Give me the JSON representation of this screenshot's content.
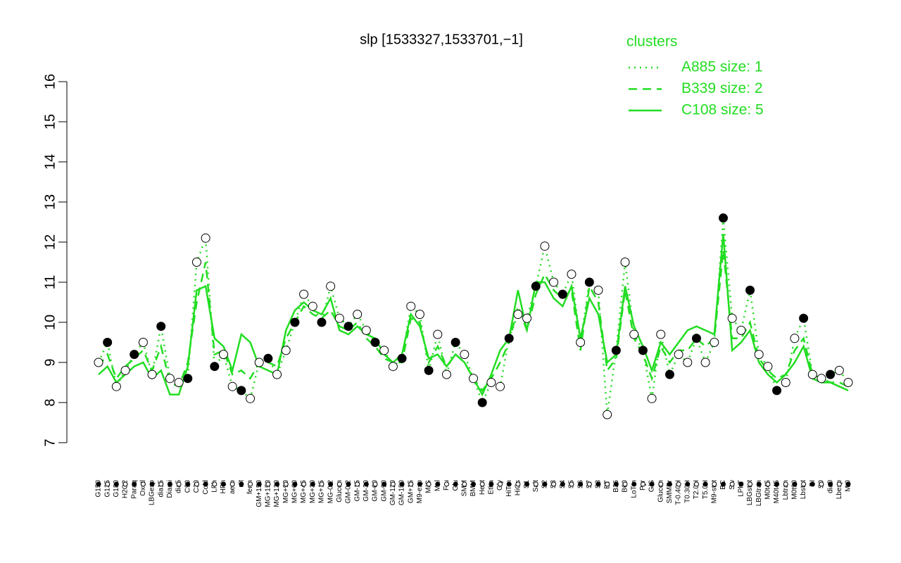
{
  "chart_data": {
    "type": "line",
    "title": "slp [1533327,1533701,−1]",
    "legend_title": "clusters",
    "legend_position": "top-right",
    "ylim": [
      7,
      16
    ],
    "yticks": [
      7,
      8,
      9,
      10,
      11,
      12,
      13,
      14,
      15,
      16
    ],
    "categories": [
      "G150",
      "G135",
      "G180",
      "H2O2",
      "Paraq",
      "Oxctl",
      "LBGexp",
      "dia15",
      "Diami",
      "dia5",
      "C90",
      "C30",
      "Cold",
      "LPh",
      "HPh",
      "aero",
      "nit",
      "ferm",
      "GM+150",
      "MG+150",
      "MG+120",
      "MG+90",
      "MG+60",
      "MG+45",
      "MG+30",
      "MG+15",
      "MG-0.2",
      "Glucon",
      "GM-0.2",
      "GM-15",
      "GM-30",
      "GM-60",
      "GM-90",
      "GM-120",
      "GM-150",
      "GM+15",
      "M9-exp",
      "M/G",
      "Mal",
      "Fru",
      "Glu",
      "SMM",
      "BMM",
      "Heat",
      "Etha",
      "Gly",
      "HiTm",
      "HiOs",
      "S1",
      "Salt",
      "S2",
      "S3",
      "S4",
      "S5",
      "S6",
      "S7",
      "S8",
      "BT",
      "B36",
      "B60",
      "LoTm",
      "Pyr",
      "G/S",
      "Glucon",
      "SMMPr",
      "T-0.40H",
      "T0.30H",
      "T2.0H",
      "T5.0H",
      "M9-stat",
      "BC",
      "Sw",
      "LPhT",
      "LBGstat",
      "LBGtran",
      "M0t45",
      "M40t45",
      "Lbtran",
      "M0t90",
      "Lbstat",
      "BI",
      "S0",
      "dia0",
      "Lbexp",
      "Mt0"
    ],
    "series": [
      {
        "name": "A885 size: 1",
        "color": "#22dd22",
        "style": "dotted",
        "points": true,
        "values": [
          9.0,
          9.5,
          8.4,
          8.8,
          9.2,
          9.5,
          8.7,
          9.9,
          8.6,
          8.5,
          8.6,
          11.5,
          12.1,
          8.9,
          9.2,
          8.4,
          8.3,
          8.1,
          9.0,
          9.1,
          8.7,
          9.3,
          10.0,
          10.7,
          10.4,
          10.0,
          10.9,
          10.1,
          9.9,
          10.2,
          9.8,
          9.5,
          9.3,
          8.9,
          9.1,
          10.4,
          10.2,
          8.8,
          9.7,
          8.7,
          9.5,
          9.2,
          8.6,
          8.0,
          8.5,
          8.4,
          9.6,
          10.2,
          10.1,
          10.9,
          11.9,
          11.0,
          10.7,
          11.2,
          9.5,
          11.0,
          10.8,
          7.7,
          9.3,
          11.5,
          9.7,
          9.3,
          8.1,
          9.7,
          8.7,
          9.2,
          9.0,
          9.6,
          9.0,
          9.5,
          12.6,
          10.1,
          9.8,
          10.8,
          9.2,
          8.9,
          8.3,
          8.5,
          9.6,
          10.1,
          8.7,
          8.6,
          8.7,
          8.8,
          8.5
        ]
      },
      {
        "name": "B339 size: 2",
        "color": "#22dd22",
        "style": "dashed",
        "values": [
          8.9,
          9.2,
          8.6,
          8.9,
          9.1,
          9.3,
          8.8,
          9.4,
          8.5,
          8.4,
          9.0,
          10.5,
          11.5,
          9.2,
          9.3,
          8.7,
          8.8,
          8.6,
          9.0,
          9.0,
          8.9,
          9.6,
          10.0,
          10.4,
          10.2,
          10.1,
          10.3,
          9.9,
          9.8,
          10.0,
          9.6,
          9.4,
          9.1,
          9.0,
          9.0,
          10.1,
          10.0,
          9.0,
          9.4,
          8.9,
          9.2,
          9.0,
          8.6,
          8.3,
          8.6,
          9.0,
          9.5,
          10.4,
          9.8,
          10.7,
          11.2,
          10.8,
          10.6,
          10.8,
          9.3,
          10.9,
          10.5,
          8.8,
          9.1,
          10.8,
          9.6,
          9.2,
          8.6,
          9.4,
          9.0,
          9.3,
          9.3,
          9.6,
          9.4,
          9.6,
          11.8,
          9.6,
          9.6,
          10.0,
          9.1,
          8.8,
          8.6,
          8.7,
          9.3,
          9.6,
          8.7,
          8.6,
          8.5,
          8.5,
          8.4
        ]
      },
      {
        "name": "C108 size: 5",
        "color": "#22dd22",
        "style": "solid",
        "values": [
          8.7,
          8.9,
          8.5,
          8.7,
          8.9,
          9.0,
          8.6,
          8.8,
          8.2,
          8.2,
          8.9,
          10.8,
          10.9,
          9.6,
          9.4,
          8.8,
          9.7,
          9.5,
          8.9,
          8.8,
          8.7,
          9.8,
          10.3,
          10.5,
          10.3,
          10.2,
          10.6,
          9.8,
          9.7,
          9.9,
          9.7,
          9.6,
          9.2,
          9.0,
          9.2,
          10.2,
          9.9,
          9.1,
          9.2,
          8.9,
          9.2,
          9.0,
          8.6,
          8.2,
          8.7,
          9.3,
          9.6,
          10.8,
          9.8,
          11.0,
          11.0,
          10.6,
          10.4,
          10.9,
          9.6,
          10.6,
          10.2,
          9.0,
          9.2,
          10.9,
          9.9,
          9.4,
          8.8,
          9.5,
          9.2,
          9.5,
          9.8,
          9.9,
          9.8,
          9.7,
          12.2,
          9.3,
          9.5,
          9.8,
          9.0,
          8.7,
          8.5,
          8.7,
          9.0,
          9.4,
          8.6,
          8.5,
          8.5,
          8.4,
          8.3
        ]
      }
    ]
  }
}
